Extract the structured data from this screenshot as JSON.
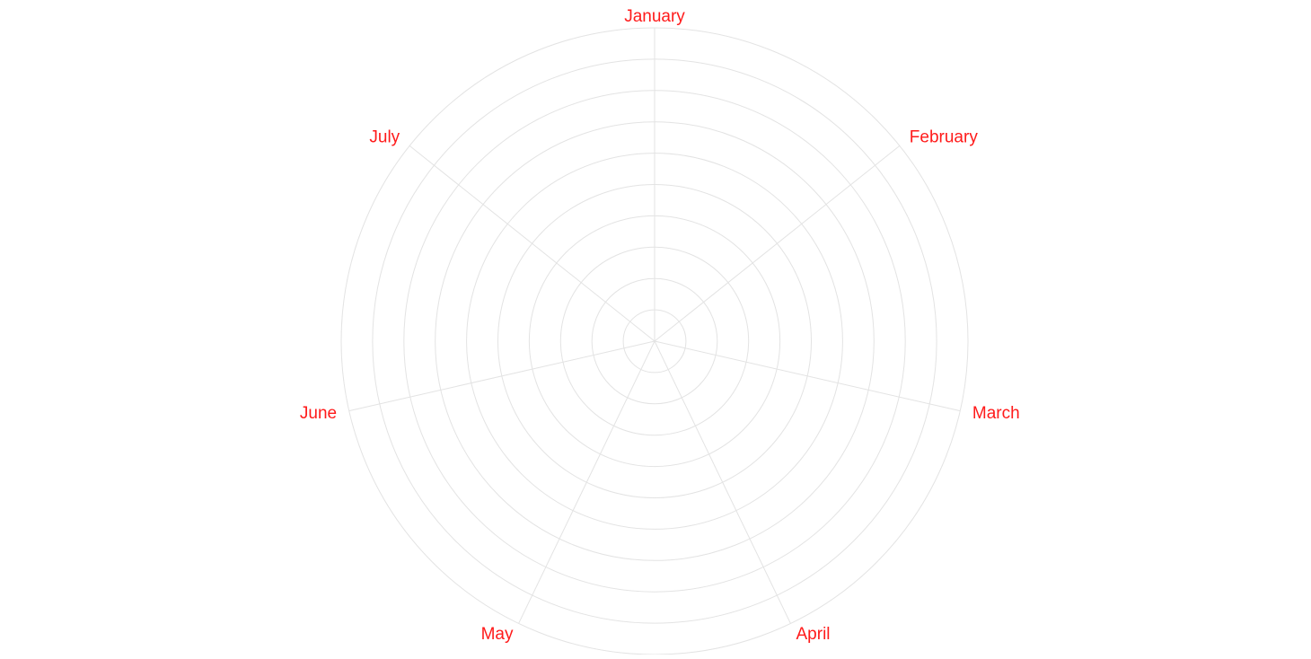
{
  "chart_data": {
    "type": "radar",
    "categories": [
      "January",
      "February",
      "March",
      "April",
      "May",
      "June",
      "July"
    ],
    "series": [],
    "grid_rings": 10,
    "grid": true,
    "colors": {
      "label": "#ff1a1a",
      "grid": "#e3e3e3",
      "background": "#ffffff"
    }
  }
}
